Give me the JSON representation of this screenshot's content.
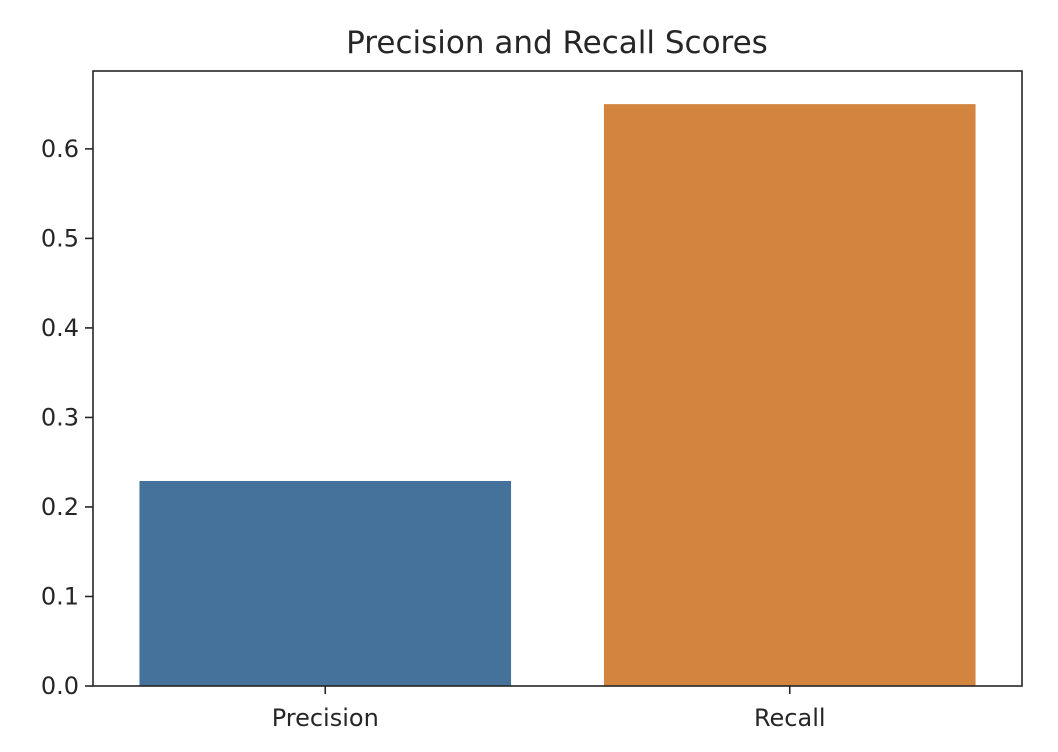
{
  "chart_data": {
    "type": "bar",
    "title": "Precision and Recall Scores",
    "xlabel": "",
    "ylabel": "",
    "categories": [
      "Precision",
      "Recall"
    ],
    "values": [
      0.229,
      0.65
    ],
    "colors": [
      "#44729b",
      "#d3843f"
    ],
    "ylim": [
      0,
      0.687
    ],
    "yticks": [
      "0.0",
      "0.1",
      "0.2",
      "0.3",
      "0.4",
      "0.5",
      "0.6"
    ],
    "grid": false,
    "legend": "none"
  }
}
